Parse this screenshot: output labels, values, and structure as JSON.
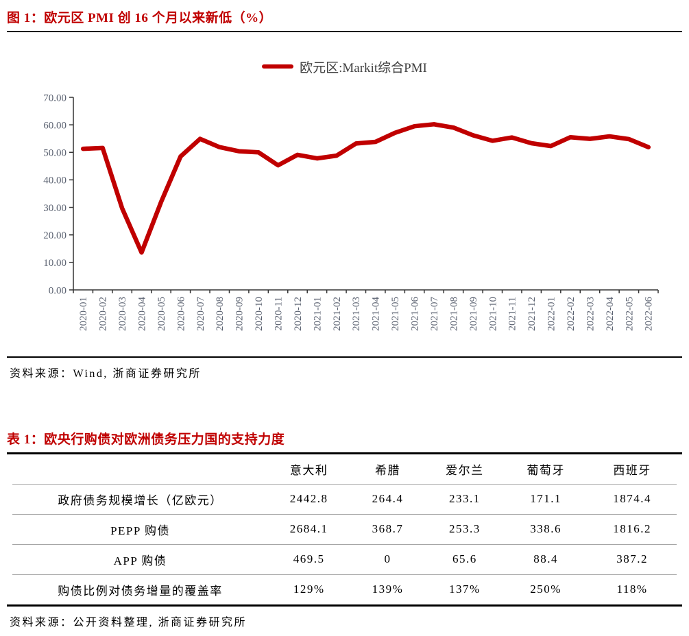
{
  "accent_color": "#c00000",
  "chart_data": [
    {
      "type": "line",
      "title": "图 1：欧元区 PMI 创 16 个月以来新低（%）",
      "source": "资料来源：Wind, 浙商证券研究所",
      "legend_position": "top",
      "grid": false,
      "line_color": "#c00000",
      "axis_color": "#333333",
      "tick_label_color": "#5b6271",
      "ylim": [
        0,
        70
      ],
      "yticks": [
        0,
        10,
        20,
        30,
        40,
        50,
        60,
        70
      ],
      "ytick_labels": [
        "0.00",
        "10.00",
        "20.00",
        "30.00",
        "40.00",
        "50.00",
        "60.00",
        "70.00"
      ],
      "x": [
        "2020-01",
        "2020-02",
        "2020-03",
        "2020-04",
        "2020-05",
        "2020-06",
        "2020-07",
        "2020-08",
        "2020-09",
        "2020-10",
        "2020-11",
        "2020-12",
        "2021-01",
        "2021-02",
        "2021-03",
        "2021-04",
        "2021-05",
        "2021-06",
        "2021-07",
        "2021-08",
        "2021-09",
        "2021-10",
        "2021-11",
        "2021-12",
        "2022-01",
        "2022-02",
        "2022-03",
        "2022-04",
        "2022-05",
        "2022-06"
      ],
      "series": [
        {
          "name": "欧元区:Markit综合PMI",
          "values": [
            51.3,
            51.6,
            29.7,
            13.6,
            31.9,
            48.5,
            54.9,
            51.9,
            50.4,
            50.0,
            45.3,
            49.1,
            47.8,
            48.8,
            53.2,
            53.8,
            57.1,
            59.5,
            60.2,
            59.0,
            56.2,
            54.2,
            55.4,
            53.3,
            52.3,
            55.5,
            54.9,
            55.8,
            54.8,
            51.9
          ]
        }
      ]
    },
    {
      "type": "table",
      "title": "表 1：欧央行购债对欧洲债务压力国的支持力度",
      "source": "资料来源：公开资料整理, 浙商证券研究所",
      "columns": [
        "",
        "意大利",
        "希腊",
        "爱尔兰",
        "葡萄牙",
        "西班牙"
      ],
      "rows": [
        [
          "政府债务规模增长（亿欧元）",
          "2442.8",
          "264.4",
          "233.1",
          "171.1",
          "1874.4"
        ],
        [
          "PEPP 购债",
          "2684.1",
          "368.7",
          "253.3",
          "338.6",
          "1816.2"
        ],
        [
          "APP 购债",
          "469.5",
          "0",
          "65.6",
          "88.4",
          "387.2"
        ],
        [
          "购债比例对债务增量的覆盖率",
          "129%",
          "139%",
          "137%",
          "250%",
          "118%"
        ]
      ]
    }
  ]
}
